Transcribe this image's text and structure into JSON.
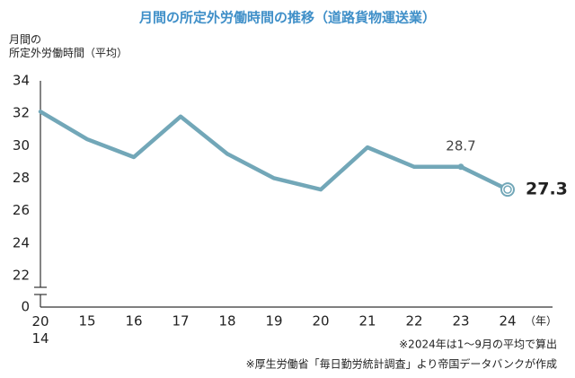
{
  "chart_data": {
    "type": "line",
    "title": "月間の所定外労働時間の推移（道路貨物運送業）",
    "y_label": "月間の\n所定外労働時間（平均）",
    "x_unit": "（年）",
    "notes": [
      "※2024年は1～9月の平均で算出",
      "※厚生労働省「毎日勤労統計調査」より帝国データバンクが作成"
    ],
    "categories": [
      "20\n14",
      "15",
      "16",
      "17",
      "18",
      "19",
      "20",
      "21",
      "22",
      "23",
      "24"
    ],
    "series": [
      {
        "name": "所定外労働時間",
        "color": "#72a7b8",
        "values": [
          32.1,
          30.4,
          29.3,
          31.8,
          29.5,
          28.0,
          27.3,
          29.9,
          28.7,
          28.7,
          27.3
        ],
        "value_labels": [
          null,
          null,
          null,
          null,
          null,
          null,
          null,
          null,
          null,
          "28.7",
          "27.3"
        ]
      }
    ],
    "ylim": [
      0,
      34
    ],
    "axis_break": [
      0,
      21
    ],
    "yticks": [
      0,
      22,
      24,
      26,
      28,
      30,
      32,
      34
    ]
  }
}
